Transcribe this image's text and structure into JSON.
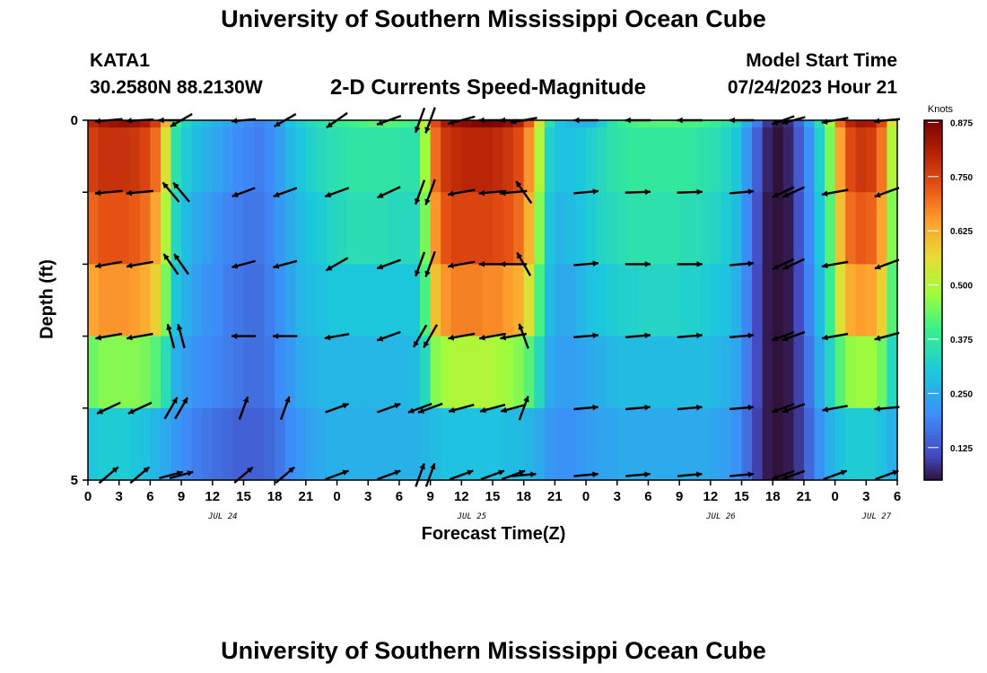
{
  "page": {
    "title_top": "University of Southern Mississippi Ocean Cube",
    "title_bottom": "University of Southern Mississippi Ocean Cube",
    "station_id": "KATA1",
    "station_coords": "30.2580N  88.2130W",
    "model_start_label": "Model Start Time",
    "model_start_value": "07/24/2023 Hour 21"
  },
  "chart_data": {
    "type": "heatmap",
    "title": "2-D Currents Speed-Magnitude",
    "xlabel": "Forecast Time(Z)",
    "ylabel": "Depth (ft)",
    "colorbar_label": "Knots",
    "x_tick_labels": [
      "0",
      "3",
      "6",
      "9",
      "12",
      "15",
      "18",
      "21",
      "0",
      "3",
      "6",
      "9",
      "12",
      "15",
      "18",
      "21",
      "0",
      "3",
      "6",
      "9",
      "12",
      "15",
      "18",
      "21",
      "0",
      "3",
      "6"
    ],
    "day_labels": [
      {
        "label": "JUL 24",
        "hour": 13
      },
      {
        "label": "JUL 25",
        "hour": 37
      },
      {
        "label": "JUL 26",
        "hour": 61
      },
      {
        "label": "JUL 27",
        "hour": 76
      }
    ],
    "y_tick_labels": [
      "0",
      "5"
    ],
    "x_range_hours": [
      0,
      78
    ],
    "depth_range_ft": [
      0,
      5
    ],
    "colorbar_ticks": [
      "0.875",
      "0.750",
      "0.625",
      "0.500",
      "0.375",
      "0.250",
      "0.125"
    ],
    "colorbar_range": [
      0.05,
      0.88
    ],
    "depth_levels_ft": [
      0.5,
      1.5,
      2.5,
      3.5,
      4.5
    ],
    "surface_row_depth_ft": 0,
    "hours": [
      0,
      1,
      2,
      3,
      4,
      5,
      6,
      7,
      8,
      9,
      10,
      11,
      12,
      13,
      14,
      15,
      16,
      17,
      18,
      19,
      20,
      21,
      22,
      23,
      24,
      25,
      26,
      27,
      28,
      29,
      30,
      31,
      32,
      33,
      34,
      35,
      36,
      37,
      38,
      39,
      40,
      41,
      42,
      43,
      44,
      45,
      46,
      47,
      48,
      49,
      50,
      51,
      52,
      53,
      54,
      55,
      56,
      57,
      58,
      59,
      60,
      61,
      62,
      63,
      64,
      65,
      66,
      67,
      68,
      69,
      70,
      71,
      72,
      73,
      74,
      75,
      76,
      77
    ],
    "speed_knots": [
      [
        0.8,
        0.83,
        0.84,
        0.85,
        0.84,
        0.82,
        0.76,
        0.62,
        0.4,
        0.33,
        0.3,
        0.28,
        0.26,
        0.24,
        0.22,
        0.2,
        0.19,
        0.21,
        0.25,
        0.29,
        0.32,
        0.34,
        0.36,
        0.38,
        0.39,
        0.4,
        0.41,
        0.42,
        0.42,
        0.42,
        0.41,
        0.4,
        0.52,
        0.74,
        0.82,
        0.85,
        0.86,
        0.87,
        0.88,
        0.87,
        0.85,
        0.81,
        0.72,
        0.55,
        0.36,
        0.29,
        0.27,
        0.26,
        0.27,
        0.31,
        0.36,
        0.39,
        0.41,
        0.42,
        0.42,
        0.42,
        0.42,
        0.41,
        0.41,
        0.4,
        0.39,
        0.37,
        0.34,
        0.26,
        0.18,
        0.09,
        0.06,
        0.08,
        0.15,
        0.24,
        0.35,
        0.48,
        0.7,
        0.8,
        0.83,
        0.82,
        0.74,
        0.54
      ],
      [
        0.76,
        0.78,
        0.78,
        0.78,
        0.77,
        0.75,
        0.7,
        0.55,
        0.36,
        0.31,
        0.28,
        0.26,
        0.24,
        0.22,
        0.2,
        0.19,
        0.18,
        0.2,
        0.23,
        0.27,
        0.3,
        0.32,
        0.34,
        0.35,
        0.36,
        0.37,
        0.37,
        0.37,
        0.37,
        0.37,
        0.36,
        0.36,
        0.48,
        0.7,
        0.77,
        0.79,
        0.8,
        0.8,
        0.8,
        0.79,
        0.77,
        0.74,
        0.66,
        0.5,
        0.32,
        0.29,
        0.29,
        0.3,
        0.32,
        0.34,
        0.36,
        0.37,
        0.38,
        0.38,
        0.38,
        0.38,
        0.38,
        0.38,
        0.37,
        0.36,
        0.35,
        0.33,
        0.3,
        0.22,
        0.14,
        0.07,
        0.05,
        0.07,
        0.13,
        0.21,
        0.32,
        0.45,
        0.64,
        0.74,
        0.77,
        0.76,
        0.69,
        0.5
      ],
      [
        0.71,
        0.73,
        0.73,
        0.73,
        0.72,
        0.7,
        0.64,
        0.5,
        0.33,
        0.28,
        0.25,
        0.23,
        0.21,
        0.19,
        0.18,
        0.17,
        0.17,
        0.19,
        0.22,
        0.25,
        0.28,
        0.3,
        0.31,
        0.33,
        0.34,
        0.35,
        0.35,
        0.35,
        0.35,
        0.34,
        0.34,
        0.34,
        0.45,
        0.66,
        0.73,
        0.75,
        0.75,
        0.75,
        0.75,
        0.74,
        0.73,
        0.7,
        0.62,
        0.46,
        0.3,
        0.27,
        0.28,
        0.29,
        0.31,
        0.33,
        0.34,
        0.35,
        0.36,
        0.36,
        0.36,
        0.36,
        0.36,
        0.35,
        0.35,
        0.34,
        0.33,
        0.31,
        0.28,
        0.2,
        0.12,
        0.06,
        0.05,
        0.06,
        0.12,
        0.2,
        0.3,
        0.42,
        0.6,
        0.7,
        0.72,
        0.71,
        0.64,
        0.46
      ],
      [
        0.64,
        0.66,
        0.66,
        0.66,
        0.65,
        0.63,
        0.58,
        0.45,
        0.3,
        0.26,
        0.23,
        0.21,
        0.2,
        0.18,
        0.17,
        0.16,
        0.16,
        0.18,
        0.21,
        0.24,
        0.27,
        0.28,
        0.29,
        0.3,
        0.3,
        0.3,
        0.3,
        0.3,
        0.3,
        0.3,
        0.3,
        0.3,
        0.41,
        0.6,
        0.66,
        0.68,
        0.68,
        0.68,
        0.67,
        0.67,
        0.65,
        0.63,
        0.55,
        0.41,
        0.28,
        0.25,
        0.25,
        0.27,
        0.29,
        0.3,
        0.31,
        0.32,
        0.32,
        0.33,
        0.33,
        0.33,
        0.33,
        0.32,
        0.32,
        0.31,
        0.3,
        0.29,
        0.26,
        0.19,
        0.11,
        0.06,
        0.05,
        0.06,
        0.11,
        0.19,
        0.28,
        0.39,
        0.55,
        0.63,
        0.65,
        0.64,
        0.58,
        0.42
      ],
      [
        0.44,
        0.46,
        0.46,
        0.46,
        0.46,
        0.45,
        0.42,
        0.35,
        0.26,
        0.23,
        0.21,
        0.2,
        0.19,
        0.18,
        0.17,
        0.16,
        0.16,
        0.17,
        0.2,
        0.22,
        0.25,
        0.26,
        0.27,
        0.27,
        0.27,
        0.27,
        0.27,
        0.27,
        0.27,
        0.27,
        0.27,
        0.28,
        0.34,
        0.46,
        0.49,
        0.5,
        0.5,
        0.5,
        0.5,
        0.49,
        0.48,
        0.46,
        0.42,
        0.34,
        0.25,
        0.23,
        0.23,
        0.24,
        0.25,
        0.26,
        0.27,
        0.28,
        0.28,
        0.28,
        0.28,
        0.28,
        0.28,
        0.28,
        0.28,
        0.28,
        0.27,
        0.26,
        0.24,
        0.18,
        0.11,
        0.06,
        0.05,
        0.06,
        0.1,
        0.17,
        0.25,
        0.33,
        0.42,
        0.47,
        0.48,
        0.48,
        0.44,
        0.34
      ],
      [
        0.3,
        0.31,
        0.31,
        0.31,
        0.3,
        0.29,
        0.27,
        0.25,
        0.22,
        0.2,
        0.18,
        0.17,
        0.16,
        0.15,
        0.14,
        0.14,
        0.14,
        0.15,
        0.17,
        0.2,
        0.22,
        0.24,
        0.25,
        0.26,
        0.26,
        0.26,
        0.26,
        0.26,
        0.26,
        0.26,
        0.26,
        0.26,
        0.27,
        0.28,
        0.29,
        0.29,
        0.29,
        0.29,
        0.29,
        0.29,
        0.28,
        0.28,
        0.27,
        0.25,
        0.22,
        0.21,
        0.21,
        0.22,
        0.23,
        0.24,
        0.24,
        0.25,
        0.25,
        0.25,
        0.25,
        0.25,
        0.25,
        0.25,
        0.25,
        0.25,
        0.24,
        0.23,
        0.21,
        0.16,
        0.1,
        0.06,
        0.05,
        0.06,
        0.09,
        0.15,
        0.21,
        0.26,
        0.29,
        0.31,
        0.31,
        0.31,
        0.29,
        0.26
      ]
    ],
    "vector_hours": [
      2,
      5,
      8,
      9,
      15,
      19,
      24,
      29,
      32,
      33,
      36,
      39,
      41,
      42,
      48,
      53,
      58,
      63,
      67,
      68,
      72,
      77
    ],
    "vector_angles_deg": [
      [
        185,
        183,
        180,
        210,
        185,
        210,
        215,
        200,
        250,
        250,
        195,
        180,
        180,
        190,
        180,
        180,
        180,
        180,
        200,
        195,
        190,
        185
      ],
      [
        185,
        185,
        130,
        130,
        200,
        200,
        200,
        205,
        250,
        250,
        190,
        185,
        185,
        125,
        5,
        2,
        2,
        5,
        205,
        205,
        190,
        200
      ],
      [
        190,
        190,
        125,
        125,
        195,
        195,
        210,
        200,
        250,
        250,
        190,
        180,
        180,
        120,
        5,
        0,
        0,
        5,
        205,
        205,
        190,
        200
      ],
      [
        190,
        190,
        105,
        105,
        180,
        180,
        190,
        200,
        240,
        240,
        190,
        190,
        190,
        110,
        5,
        5,
        5,
        5,
        200,
        200,
        190,
        195
      ],
      [
        205,
        205,
        60,
        60,
        70,
        70,
        20,
        20,
        200,
        200,
        195,
        195,
        195,
        70,
        5,
        5,
        5,
        5,
        200,
        200,
        190,
        185
      ],
      [
        40,
        40,
        15,
        15,
        40,
        40,
        20,
        20,
        70,
        70,
        20,
        20,
        20,
        5,
        5,
        5,
        5,
        5,
        200,
        200,
        20,
        20
      ]
    ]
  }
}
